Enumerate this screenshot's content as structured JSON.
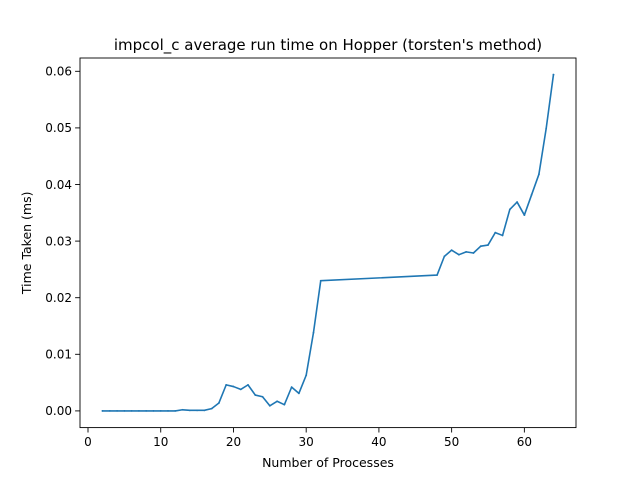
{
  "chart_data": {
    "type": "line",
    "title": "impcol_c average run time on Hopper (torsten's method)",
    "xlabel": "Number of Processes",
    "ylabel": "Time Taken (ms)",
    "xlim": [
      -1.1,
      67.1
    ],
    "ylim": [
      -0.00295,
      0.06235
    ],
    "xticks": [
      0,
      10,
      20,
      30,
      40,
      50,
      60
    ],
    "yticks": [
      0.0,
      0.01,
      0.02,
      0.03,
      0.04,
      0.05,
      0.06
    ],
    "xtick_labels": [
      "0",
      "10",
      "20",
      "30",
      "40",
      "50",
      "60"
    ],
    "ytick_labels": [
      "0.00",
      "0.01",
      "0.02",
      "0.03",
      "0.04",
      "0.05",
      "0.06"
    ],
    "grid": false,
    "series": [
      {
        "color": "#1f77b4",
        "x": [
          2,
          3,
          4,
          5,
          6,
          7,
          8,
          9,
          10,
          11,
          12,
          13,
          14,
          15,
          16,
          17,
          18,
          19,
          20,
          21,
          22,
          23,
          24,
          25,
          26,
          27,
          28,
          29,
          30,
          31,
          32,
          48,
          49,
          50,
          51,
          52,
          53,
          54,
          55,
          56,
          57,
          58,
          59,
          60,
          61,
          62,
          63,
          64
        ],
        "y": [
          0.0,
          0.0,
          0.0,
          0.0,
          0.0,
          0.0,
          0.0,
          0.0,
          0.0,
          0.0,
          0.0,
          0.0002,
          0.0001,
          0.0001,
          0.0001,
          0.0004,
          0.0014,
          0.0046,
          0.0043,
          0.0038,
          0.0046,
          0.0028,
          0.0025,
          0.0009,
          0.0017,
          0.0011,
          0.0042,
          0.0031,
          0.0063,
          0.0138,
          0.023,
          0.024,
          0.0273,
          0.0284,
          0.0276,
          0.0281,
          0.0279,
          0.0291,
          0.0293,
          0.0315,
          0.031,
          0.0356,
          0.0369,
          0.0346,
          0.0382,
          0.0418,
          0.0499,
          0.0594
        ]
      }
    ]
  }
}
